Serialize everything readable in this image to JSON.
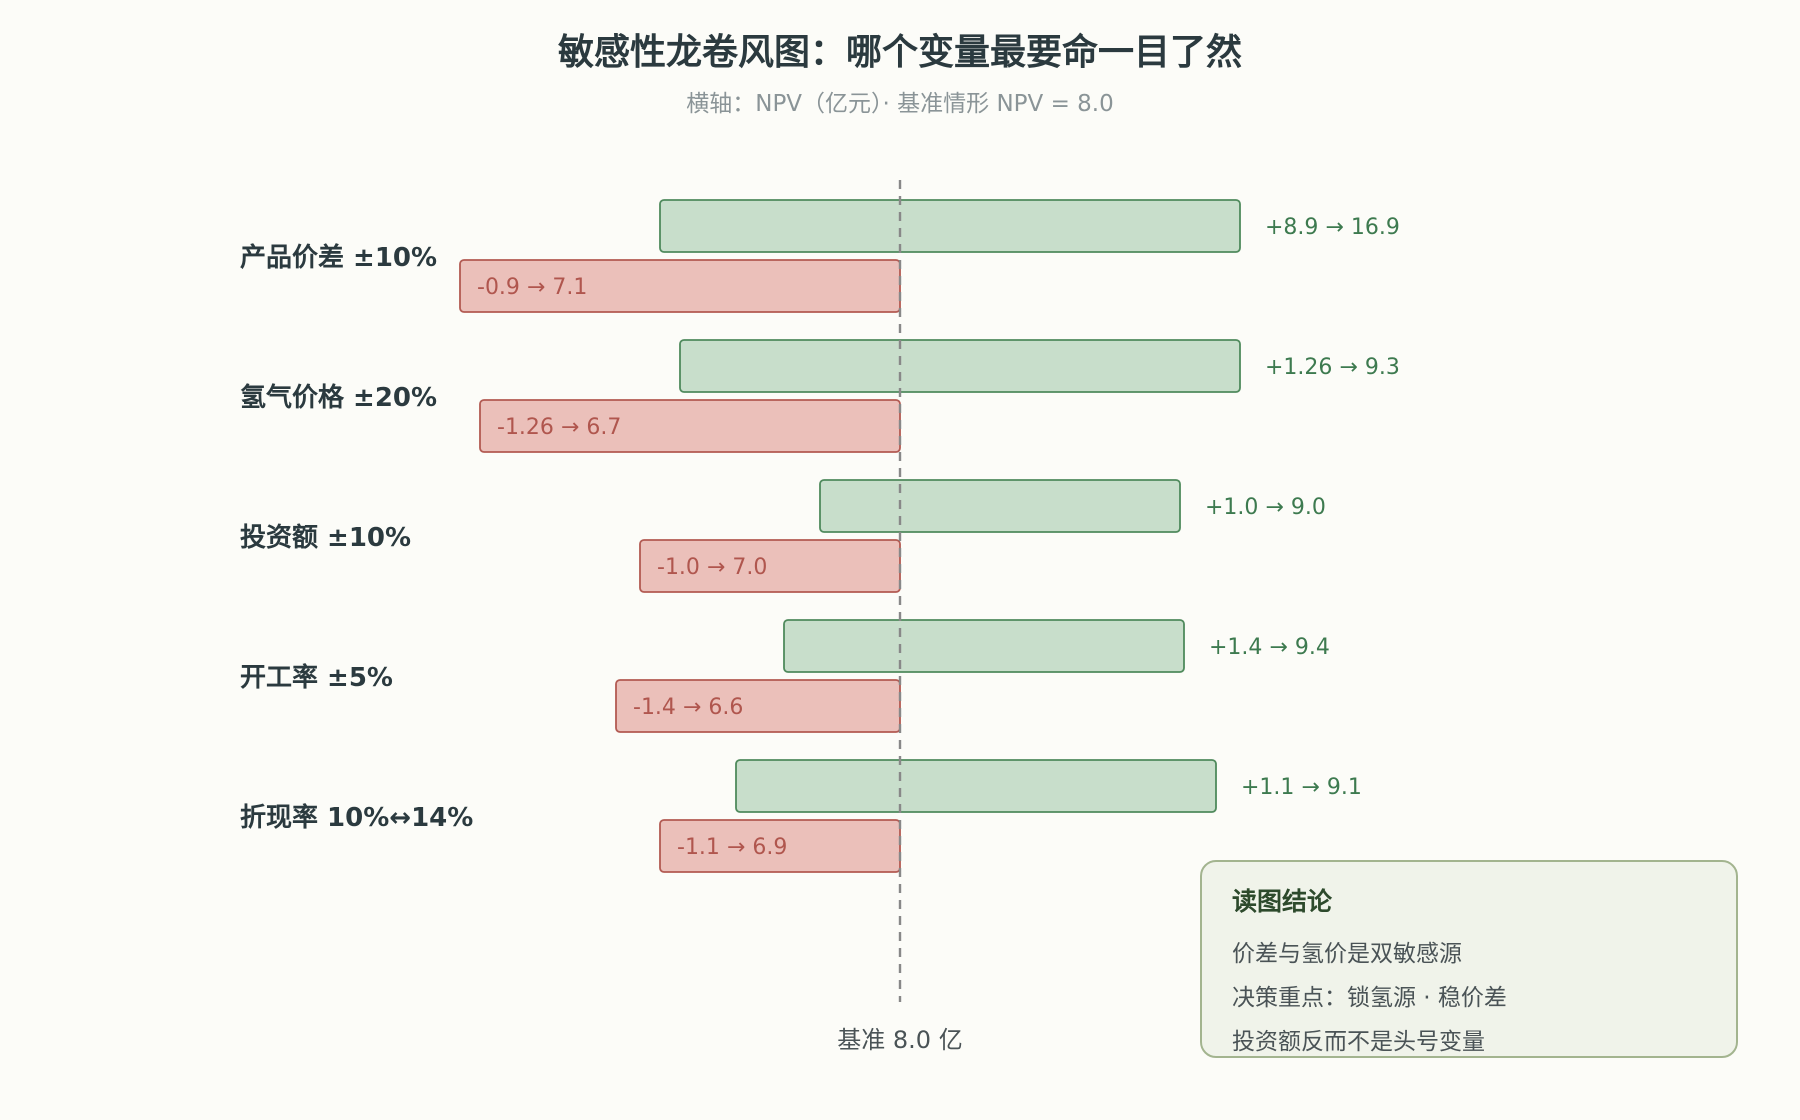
{
  "chart_data": {
    "type": "bar",
    "orientation": "horizontal-tornado",
    "title": "敏感性龙卷风图：哪个变量最要命一目了然",
    "subtitle": "横轴：NPV（亿元）· 基准情形 NPV = 8.0",
    "baseline_value": 8.0,
    "baseline_label": "基准 8.0 亿",
    "categories": [
      "产品价差 ±10%",
      "氢气价格 ±20%",
      "投资额 ±10%",
      "开工率 ±5%",
      "折现率 10%↔14%"
    ],
    "series": [
      {
        "role": "upside",
        "color": "#c8decb",
        "values": [
          8.9,
          1.26,
          1.0,
          1.4,
          1.1
        ],
        "labels": [
          "+8.9 → 16.9",
          "+1.26 → 9.3",
          "+1.0 → 9.0",
          "+1.4 → 9.4",
          "+1.1 → 9.1"
        ]
      },
      {
        "role": "downside",
        "color": "#ebc0ba",
        "values": [
          -0.9,
          -1.26,
          -1.0,
          -1.4,
          -1.1
        ],
        "labels": [
          "-0.9 → 7.1",
          "-1.26 → 6.7",
          "-1.0 → 7.0",
          "-1.4 → 6.6",
          "-1.1 → 6.9"
        ]
      }
    ],
    "grid": false
  },
  "note": {
    "title": "读图结论",
    "lines": [
      "价差与氢价是双敏感源",
      "决策重点：锁氢源 · 稳价差",
      "投资额反而不是头号变量"
    ]
  },
  "colors": {
    "upside_fill": "#c8decb",
    "upside_stroke": "#4f8a5c",
    "downside_fill": "#ebc0ba",
    "downside_stroke": "#b25a52",
    "baseline": "#888888"
  }
}
